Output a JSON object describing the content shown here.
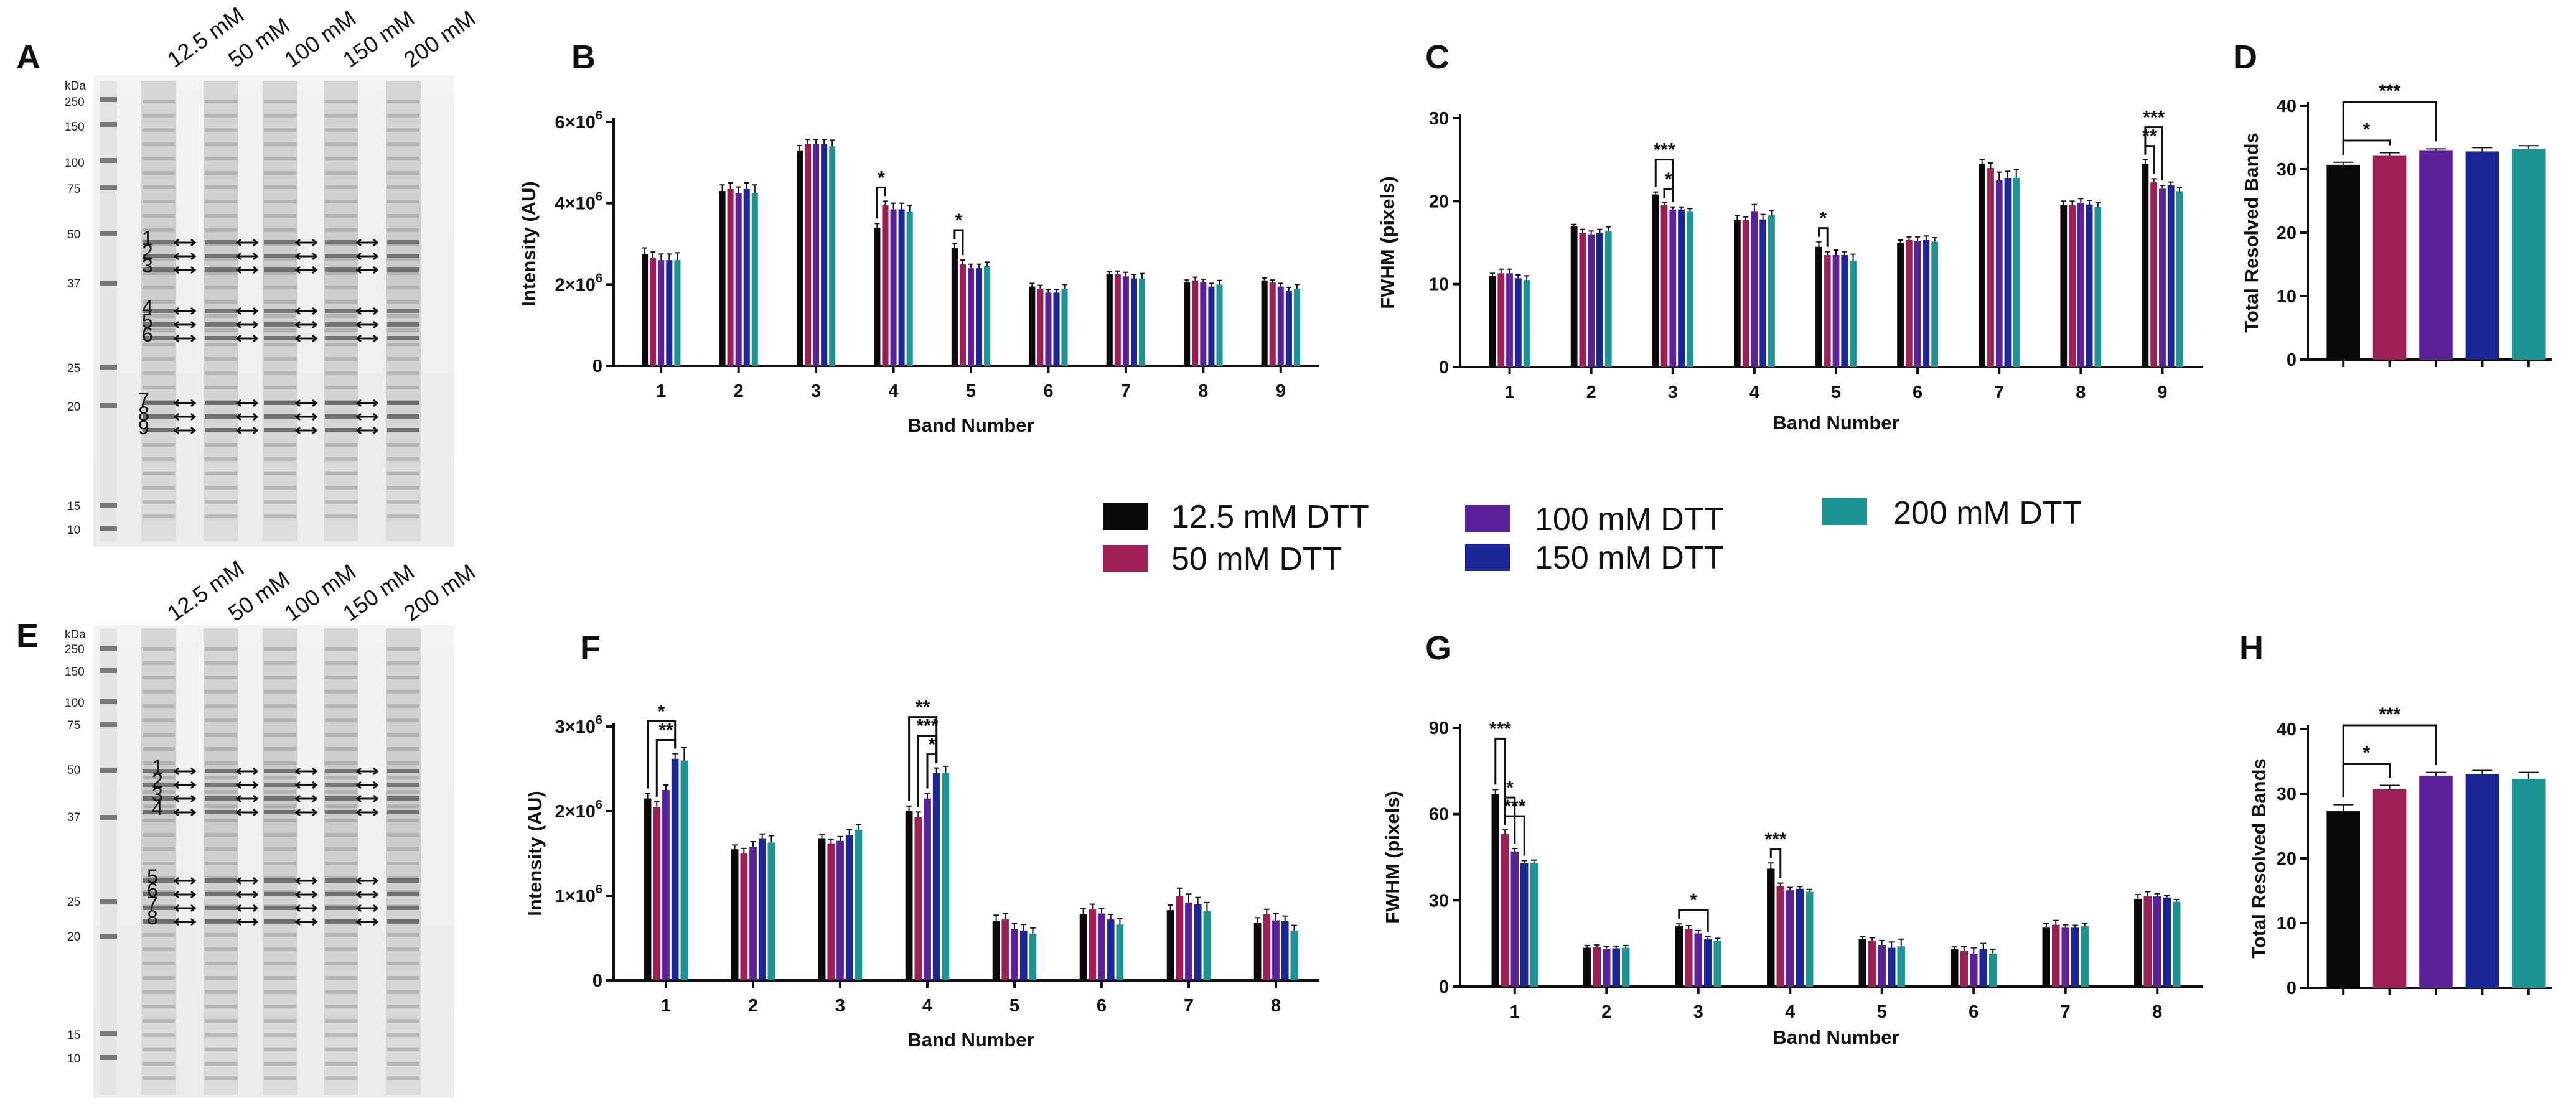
{
  "colors": {
    "c12_5": "#0a0a0a",
    "c50": "#9e1f55",
    "c100": "#5a2199",
    "c150": "#1c2595",
    "c200": "#1b9493"
  },
  "legend": [
    {
      "label": "12.5 mM DTT",
      "color": "#0a0a0a"
    },
    {
      "label": "50 mM DTT",
      "color": "#9e1f55"
    },
    {
      "label": "100 mM DTT",
      "color": "#5a2199"
    },
    {
      "label": "150 mM DTT",
      "color": "#1c2595"
    },
    {
      "label": "200 mM DTT",
      "color": "#1b9493"
    }
  ],
  "gels": [
    {
      "letter": "A",
      "lanes": [
        "12.5 mM",
        "50 mM",
        "100 mM",
        "150 mM",
        "200 mM"
      ],
      "kda_title": "kDa",
      "markers": [
        "250",
        "150",
        "100",
        "75",
        "50",
        "37",
        "25",
        "20",
        "15",
        "10"
      ],
      "band_labels": [
        "1",
        "2",
        "3",
        "4",
        "5",
        "6",
        "7",
        "8",
        "9"
      ]
    },
    {
      "letter": "E",
      "lanes": [
        "12.5 mM",
        "50 mM",
        "100 mM",
        "150 mM",
        "200 mM"
      ],
      "kda_title": "kDa",
      "markers": [
        "250",
        "150",
        "100",
        "75",
        "50",
        "37",
        "25",
        "20",
        "15",
        "10"
      ],
      "band_labels": [
        "1",
        "2",
        "3",
        "4",
        "5",
        "6",
        "7",
        "8"
      ]
    }
  ],
  "chart_data": [
    {
      "panel": "B",
      "type": "bar",
      "xlabel": "Band Number",
      "ylabel": "Intensity (AU)",
      "ylim": [
        0,
        6000000
      ],
      "yticks": [
        0,
        2000000,
        4000000,
        6000000
      ],
      "ytick_labels": [
        "0",
        "2×10",
        "4×10",
        "6×10"
      ],
      "ytick_sup": [
        "",
        "6",
        "6",
        "6"
      ],
      "categories": [
        "1",
        "2",
        "3",
        "4",
        "5",
        "6",
        "7",
        "8",
        "9"
      ],
      "series": [
        {
          "name": "12.5 mM DTT",
          "values": [
            2750000,
            4300000,
            5300000,
            3400000,
            2900000,
            1950000,
            2250000,
            2050000,
            2100000
          ],
          "errors": [
            150000,
            150000,
            120000,
            100000,
            100000,
            80000,
            60000,
            60000,
            60000
          ]
        },
        {
          "name": "50 mM DTT",
          "values": [
            2650000,
            4350000,
            5450000,
            3950000,
            2500000,
            1900000,
            2250000,
            2100000,
            2050000
          ],
          "errors": [
            150000,
            150000,
            120000,
            100000,
            100000,
            80000,
            80000,
            80000,
            60000
          ]
        },
        {
          "name": "100 mM DTT",
          "values": [
            2600000,
            4250000,
            5450000,
            3850000,
            2400000,
            1800000,
            2200000,
            2050000,
            1950000
          ],
          "errors": [
            150000,
            150000,
            120000,
            150000,
            100000,
            80000,
            100000,
            80000,
            80000
          ]
        },
        {
          "name": "150 mM DTT",
          "values": [
            2600000,
            4350000,
            5450000,
            3850000,
            2400000,
            1800000,
            2150000,
            1950000,
            1850000
          ],
          "errors": [
            150000,
            150000,
            120000,
            150000,
            100000,
            80000,
            100000,
            80000,
            80000
          ]
        },
        {
          "name": "200 mM DTT",
          "values": [
            2600000,
            4250000,
            5400000,
            3800000,
            2450000,
            1900000,
            2150000,
            2000000,
            1900000
          ],
          "errors": [
            180000,
            200000,
            150000,
            150000,
            100000,
            100000,
            120000,
            100000,
            100000
          ]
        }
      ],
      "sig": [
        {
          "cat": 3,
          "from": 0,
          "to": 1,
          "label": "*"
        },
        {
          "cat": 4,
          "from": 0,
          "to": 1,
          "label": "*"
        }
      ]
    },
    {
      "panel": "C",
      "type": "bar",
      "xlabel": "Band Number",
      "ylabel": "FWHM (pixels)",
      "ylim": [
        0,
        30
      ],
      "yticks": [
        0,
        10,
        20,
        30
      ],
      "ytick_labels": [
        "0",
        "10",
        "20",
        "30"
      ],
      "categories": [
        "1",
        "2",
        "3",
        "4",
        "5",
        "6",
        "7",
        "8",
        "9"
      ],
      "series": [
        {
          "name": "12.5 mM DTT",
          "values": [
            11,
            17,
            20.8,
            17.7,
            14.5,
            15,
            24.5,
            19.5,
            24.5
          ],
          "errors": [
            0.3,
            0.2,
            0.3,
            0.6,
            0.6,
            0.3,
            0.5,
            0.5,
            0.5
          ]
        },
        {
          "name": "50 mM DTT",
          "values": [
            11.3,
            16.2,
            19.5,
            17.7,
            13.5,
            15.3,
            24,
            19.5,
            22.3
          ],
          "errors": [
            0.5,
            0.4,
            0.3,
            0.4,
            0.4,
            0.4,
            0.6,
            0.5,
            0.4
          ]
        },
        {
          "name": "100 mM DTT",
          "values": [
            11.3,
            16,
            19,
            18.8,
            13.5,
            15.2,
            22.5,
            19.8,
            21.5
          ],
          "errors": [
            0.5,
            0.4,
            0.3,
            0.8,
            0.6,
            0.5,
            1.0,
            0.5,
            0.4
          ]
        },
        {
          "name": "150 mM DTT",
          "values": [
            10.7,
            16.2,
            19,
            17.8,
            13.5,
            15.3,
            22.8,
            19.6,
            21.9
          ],
          "errors": [
            0.4,
            0.4,
            0.3,
            0.6,
            0.4,
            0.5,
            0.8,
            0.5,
            0.4
          ]
        },
        {
          "name": "200 mM DTT",
          "values": [
            10.5,
            16.4,
            18.8,
            18.3,
            12.8,
            15.1,
            22.8,
            19.3,
            21.2
          ],
          "errors": [
            0.5,
            0.5,
            0.3,
            0.6,
            0.8,
            0.5,
            1.0,
            0.5,
            0.4
          ]
        }
      ],
      "sig": [
        {
          "cat": 2,
          "from": 0,
          "to": 2,
          "label": "***"
        },
        {
          "cat": 2,
          "from": 1,
          "to": 2,
          "label": "*"
        },
        {
          "cat": 4,
          "from": 0,
          "to": 1,
          "label": "*"
        },
        {
          "cat": 8,
          "from": 0,
          "to": 2,
          "label": "***"
        },
        {
          "cat": 8,
          "from": 0,
          "to": 1,
          "label": "**"
        }
      ]
    },
    {
      "panel": "D",
      "type": "bar",
      "xlabel": "",
      "ylabel": "Total Resolved Bands",
      "ylim": [
        0,
        40
      ],
      "yticks": [
        0,
        10,
        20,
        30,
        40
      ],
      "ytick_labels": [
        "0",
        "10",
        "20",
        "30",
        "40"
      ],
      "categories": [
        "12.5 mM DTT",
        "50 mM DTT",
        "100 mM DTT",
        "150 mM DTT",
        "200 mM DTT"
      ],
      "values": [
        30.7,
        32.2,
        33.0,
        32.8,
        33.2
      ],
      "errors": [
        0.4,
        0.4,
        0.2,
        0.6,
        0.5
      ],
      "sig": [
        {
          "from": 0,
          "to": 1,
          "label": "*"
        },
        {
          "from": 0,
          "to": 2,
          "label": "***"
        }
      ]
    },
    {
      "panel": "F",
      "type": "bar",
      "xlabel": "Band Number",
      "ylabel": "Intensity (AU)",
      "ylim": [
        0,
        3000000
      ],
      "yticks": [
        0,
        1000000,
        2000000,
        3000000
      ],
      "ytick_labels": [
        "0",
        "1×10",
        "2×10",
        "3×10"
      ],
      "ytick_sup": [
        "",
        "6",
        "6",
        "6"
      ],
      "categories": [
        "1",
        "2",
        "3",
        "4",
        "5",
        "6",
        "7",
        "8"
      ],
      "series": [
        {
          "name": "12.5 mM DTT",
          "values": [
            2150000,
            1550000,
            1680000,
            2000000,
            700000,
            780000,
            830000,
            680000
          ],
          "errors": [
            60000,
            50000,
            40000,
            60000,
            70000,
            70000,
            60000,
            60000
          ]
        },
        {
          "name": "50 mM DTT",
          "values": [
            2050000,
            1500000,
            1620000,
            1930000,
            720000,
            840000,
            1000000,
            780000
          ],
          "errors": [
            60000,
            60000,
            50000,
            60000,
            70000,
            60000,
            90000,
            60000
          ]
        },
        {
          "name": "100 mM DTT",
          "values": [
            2250000,
            1580000,
            1650000,
            2150000,
            610000,
            790000,
            920000,
            710000
          ],
          "errors": [
            60000,
            60000,
            50000,
            60000,
            60000,
            60000,
            100000,
            80000
          ]
        },
        {
          "name": "150 mM DTT",
          "values": [
            2620000,
            1680000,
            1720000,
            2450000,
            590000,
            720000,
            900000,
            700000
          ],
          "errors": [
            60000,
            50000,
            60000,
            60000,
            70000,
            60000,
            80000,
            60000
          ]
        },
        {
          "name": "200 mM DTT",
          "values": [
            2600000,
            1630000,
            1780000,
            2450000,
            550000,
            660000,
            820000,
            590000
          ],
          "errors": [
            150000,
            80000,
            60000,
            80000,
            70000,
            70000,
            100000,
            60000
          ]
        }
      ],
      "sig": [
        {
          "cat": 0,
          "from": 0,
          "to": 3,
          "label": "*"
        },
        {
          "cat": 0,
          "from": 1,
          "to": 3,
          "label": "**"
        },
        {
          "cat": 3,
          "from": 0,
          "to": 3,
          "label": "**"
        },
        {
          "cat": 3,
          "from": 1,
          "to": 3,
          "label": "***"
        },
        {
          "cat": 3,
          "from": 2,
          "to": 3,
          "label": "*"
        }
      ]
    },
    {
      "panel": "G",
      "type": "bar",
      "xlabel": "Band Number",
      "ylabel": "FWHM (pixels)",
      "ylim": [
        0,
        90
      ],
      "yticks": [
        0,
        30,
        60,
        90
      ],
      "ytick_labels": [
        "0",
        "30",
        "60",
        "90"
      ],
      "categories": [
        "1",
        "2",
        "3",
        "4",
        "5",
        "6",
        "7",
        "8"
      ],
      "series": [
        {
          "name": "12.5 mM DTT",
          "values": [
            67,
            13.5,
            21,
            41,
            16.5,
            13,
            20.5,
            30.5
          ],
          "errors": [
            1.5,
            0.8,
            0.8,
            2.0,
            0.8,
            0.8,
            1.5,
            1.5
          ]
        },
        {
          "name": "50 mM DTT",
          "values": [
            53,
            13.7,
            20,
            35,
            16,
            12.5,
            21.5,
            31.5
          ],
          "errors": [
            1.5,
            0.8,
            1.2,
            1.0,
            1.0,
            1.5,
            1.5,
            1.5
          ]
        },
        {
          "name": "100 mM DTT",
          "values": [
            47,
            13.2,
            18.5,
            33.5,
            14.5,
            11.5,
            20.5,
            31.5
          ],
          "errors": [
            1.0,
            0.8,
            1.0,
            1.0,
            1.5,
            2.0,
            1.0,
            0.8
          ]
        },
        {
          "name": "150 mM DTT",
          "values": [
            43,
            13.3,
            16.5,
            34,
            13.5,
            13,
            20.5,
            31
          ],
          "errors": [
            0.8,
            0.8,
            0.8,
            0.8,
            2.0,
            2.0,
            0.8,
            0.8
          ]
        },
        {
          "name": "200 mM DTT",
          "values": [
            43,
            13.5,
            16,
            33,
            14,
            11.5,
            21,
            29.5
          ],
          "errors": [
            1.0,
            0.8,
            0.8,
            0.8,
            2.5,
            1.5,
            1.0,
            0.8
          ]
        }
      ],
      "sig": [
        {
          "cat": 0,
          "from": 0,
          "to": 1,
          "label": "***"
        },
        {
          "cat": 0,
          "from": 1,
          "to": 2,
          "label": "*"
        },
        {
          "cat": 0,
          "from": 1,
          "to": 3,
          "label": "***"
        },
        {
          "cat": 2,
          "from": 0,
          "to": 3,
          "label": "*"
        },
        {
          "cat": 3,
          "from": 0,
          "to": 1,
          "label": "***"
        }
      ]
    },
    {
      "panel": "H",
      "type": "bar",
      "xlabel": "",
      "ylabel": "Total Resolved Bands",
      "ylim": [
        0,
        40
      ],
      "yticks": [
        0,
        10,
        20,
        30,
        40
      ],
      "ytick_labels": [
        "0",
        "10",
        "20",
        "30",
        "40"
      ],
      "categories": [
        "12.5 mM DTT",
        "50 mM DTT",
        "100 mM DTT",
        "150 mM DTT",
        "200 mM DTT"
      ],
      "values": [
        27.3,
        30.7,
        32.8,
        33.0,
        32.3
      ],
      "errors": [
        1.0,
        0.6,
        0.5,
        0.6,
        1.0
      ],
      "sig": [
        {
          "from": 0,
          "to": 1,
          "label": "*"
        },
        {
          "from": 0,
          "to": 2,
          "label": "***"
        }
      ]
    }
  ]
}
